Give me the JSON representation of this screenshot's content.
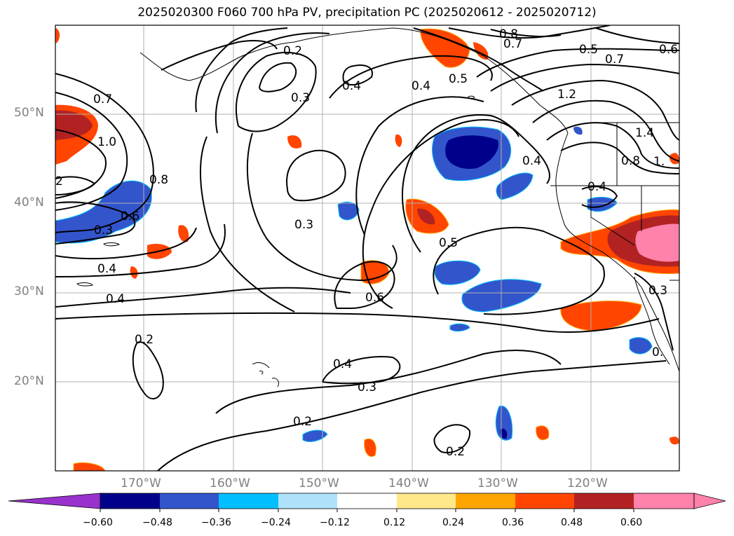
{
  "title": "2025020300 F060 700 hPa PV, precipitation PC (2025020612 - 2025020712)",
  "lat_labels": [
    "50°N",
    "40°N",
    "30°N",
    "20°N"
  ],
  "lon_labels": [
    "170°W",
    "160°W",
    "150°W",
    "140°W",
    "130°W",
    "120°W"
  ],
  "colorbar": {
    "ticks": [
      "−0.60",
      "−0.48",
      "−0.36",
      "−0.24",
      "−0.12",
      "0.12",
      "0.24",
      "0.36",
      "0.48",
      "0.60"
    ],
    "colors": [
      "#9932cc",
      "#00008b",
      "#3355cc",
      "#00bfff",
      "#aee2fa",
      "#ffffff",
      "#ffe88a",
      "#ffa500",
      "#ff4500",
      "#b22222",
      "#ff82ab"
    ]
  },
  "contour_labels": [
    "0.8",
    "0.7",
    "0.5",
    "0.6",
    "0.7",
    "0.2",
    "0.3",
    "0.4",
    "0.4",
    "0.5",
    "0.7",
    "1.0",
    "1.2",
    "1.4",
    "0.8",
    "1.",
    "0.4",
    "0.8",
    "2",
    "0.6",
    "0.3",
    "0.4",
    "0.3",
    "0.5",
    "0.6",
    "0.4",
    "0.2",
    "0.4",
    "0.3",
    "0.2",
    "0.2",
    "0.4",
    "0.3",
    "0."
  ]
}
